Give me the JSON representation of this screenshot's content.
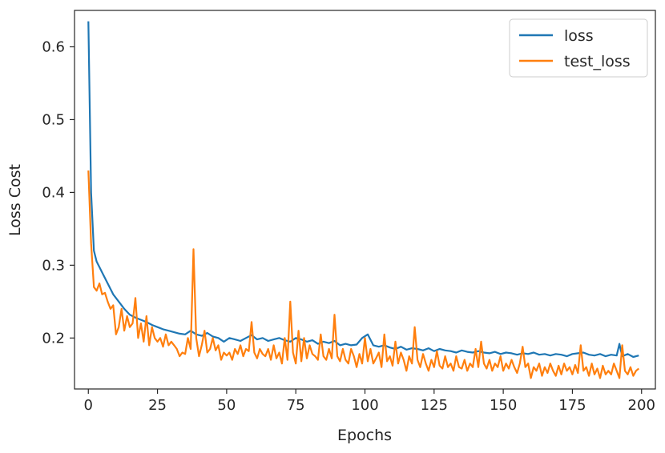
{
  "chart_data": {
    "type": "line",
    "title": "",
    "xlabel": "Epochs",
    "ylabel": "Loss Cost",
    "xlim": [
      -5,
      205
    ],
    "ylim": [
      0.13,
      0.65
    ],
    "xticks": [
      0,
      25,
      50,
      75,
      100,
      125,
      150,
      175,
      200
    ],
    "yticks": [
      0.2,
      0.3,
      0.4,
      0.5,
      0.6
    ],
    "ytick_labels": [
      "0.2",
      "0.3",
      "0.4",
      "0.5",
      "0.6"
    ],
    "grid": false,
    "legend": "top-right",
    "series": [
      {
        "name": "loss",
        "color": "#1f77b4",
        "points": [
          [
            0,
            0.635
          ],
          [
            1,
            0.4
          ],
          [
            2,
            0.32
          ],
          [
            3,
            0.305
          ],
          [
            5,
            0.29
          ],
          [
            7,
            0.275
          ],
          [
            9,
            0.26
          ],
          [
            11,
            0.25
          ],
          [
            13,
            0.24
          ],
          [
            15,
            0.232
          ],
          [
            17,
            0.228
          ],
          [
            19,
            0.225
          ],
          [
            21,
            0.222
          ],
          [
            23,
            0.218
          ],
          [
            25,
            0.215
          ],
          [
            27,
            0.212
          ],
          [
            29,
            0.21
          ],
          [
            31,
            0.208
          ],
          [
            33,
            0.206
          ],
          [
            35,
            0.205
          ],
          [
            37,
            0.21
          ],
          [
            39,
            0.205
          ],
          [
            41,
            0.203
          ],
          [
            43,
            0.207
          ],
          [
            45,
            0.202
          ],
          [
            47,
            0.2
          ],
          [
            49,
            0.195
          ],
          [
            51,
            0.2
          ],
          [
            53,
            0.198
          ],
          [
            55,
            0.196
          ],
          [
            57,
            0.2
          ],
          [
            59,
            0.204
          ],
          [
            61,
            0.198
          ],
          [
            63,
            0.2
          ],
          [
            65,
            0.196
          ],
          [
            67,
            0.198
          ],
          [
            69,
            0.2
          ],
          [
            71,
            0.197
          ],
          [
            73,
            0.195
          ],
          [
            75,
            0.2
          ],
          [
            77,
            0.198
          ],
          [
            79,
            0.195
          ],
          [
            81,
            0.197
          ],
          [
            83,
            0.192
          ],
          [
            85,
            0.195
          ],
          [
            87,
            0.193
          ],
          [
            89,
            0.196
          ],
          [
            91,
            0.19
          ],
          [
            93,
            0.192
          ],
          [
            95,
            0.19
          ],
          [
            97,
            0.191
          ],
          [
            99,
            0.2
          ],
          [
            101,
            0.205
          ],
          [
            103,
            0.19
          ],
          [
            105,
            0.188
          ],
          [
            107,
            0.19
          ],
          [
            109,
            0.187
          ],
          [
            111,
            0.185
          ],
          [
            113,
            0.188
          ],
          [
            115,
            0.184
          ],
          [
            117,
            0.186
          ],
          [
            119,
            0.185
          ],
          [
            121,
            0.183
          ],
          [
            123,
            0.186
          ],
          [
            125,
            0.182
          ],
          [
            127,
            0.185
          ],
          [
            129,
            0.183
          ],
          [
            131,
            0.182
          ],
          [
            133,
            0.18
          ],
          [
            135,
            0.183
          ],
          [
            137,
            0.181
          ],
          [
            139,
            0.18
          ],
          [
            141,
            0.182
          ],
          [
            143,
            0.18
          ],
          [
            145,
            0.179
          ],
          [
            147,
            0.181
          ],
          [
            149,
            0.178
          ],
          [
            151,
            0.18
          ],
          [
            153,
            0.179
          ],
          [
            155,
            0.177
          ],
          [
            157,
            0.179
          ],
          [
            159,
            0.178
          ],
          [
            161,
            0.18
          ],
          [
            163,
            0.177
          ],
          [
            165,
            0.178
          ],
          [
            167,
            0.176
          ],
          [
            169,
            0.178
          ],
          [
            171,
            0.177
          ],
          [
            173,
            0.175
          ],
          [
            175,
            0.178
          ],
          [
            177,
            0.179
          ],
          [
            179,
            0.18
          ],
          [
            181,
            0.177
          ],
          [
            183,
            0.176
          ],
          [
            185,
            0.178
          ],
          [
            187,
            0.175
          ],
          [
            189,
            0.177
          ],
          [
            191,
            0.176
          ],
          [
            192,
            0.192
          ],
          [
            193,
            0.175
          ],
          [
            195,
            0.178
          ],
          [
            197,
            0.174
          ],
          [
            199,
            0.176
          ]
        ]
      },
      {
        "name": "test_loss",
        "color": "#ff7f0e",
        "points": [
          [
            0,
            0.43
          ],
          [
            1,
            0.33
          ],
          [
            2,
            0.27
          ],
          [
            3,
            0.265
          ],
          [
            4,
            0.275
          ],
          [
            5,
            0.26
          ],
          [
            6,
            0.262
          ],
          [
            7,
            0.25
          ],
          [
            8,
            0.24
          ],
          [
            9,
            0.245
          ],
          [
            10,
            0.205
          ],
          [
            11,
            0.215
          ],
          [
            12,
            0.24
          ],
          [
            13,
            0.21
          ],
          [
            14,
            0.23
          ],
          [
            15,
            0.215
          ],
          [
            16,
            0.22
          ],
          [
            17,
            0.255
          ],
          [
            18,
            0.2
          ],
          [
            19,
            0.22
          ],
          [
            20,
            0.195
          ],
          [
            21,
            0.23
          ],
          [
            22,
            0.19
          ],
          [
            23,
            0.215
          ],
          [
            24,
            0.2
          ],
          [
            25,
            0.195
          ],
          [
            26,
            0.2
          ],
          [
            27,
            0.188
          ],
          [
            28,
            0.205
          ],
          [
            29,
            0.19
          ],
          [
            30,
            0.195
          ],
          [
            31,
            0.19
          ],
          [
            32,
            0.185
          ],
          [
            33,
            0.175
          ],
          [
            34,
            0.18
          ],
          [
            35,
            0.178
          ],
          [
            36,
            0.2
          ],
          [
            37,
            0.185
          ],
          [
            38,
            0.322
          ],
          [
            39,
            0.2
          ],
          [
            40,
            0.175
          ],
          [
            41,
            0.19
          ],
          [
            42,
            0.21
          ],
          [
            43,
            0.18
          ],
          [
            44,
            0.185
          ],
          [
            45,
            0.2
          ],
          [
            46,
            0.183
          ],
          [
            47,
            0.19
          ],
          [
            48,
            0.17
          ],
          [
            49,
            0.18
          ],
          [
            50,
            0.176
          ],
          [
            51,
            0.18
          ],
          [
            52,
            0.17
          ],
          [
            53,
            0.185
          ],
          [
            54,
            0.178
          ],
          [
            55,
            0.19
          ],
          [
            56,
            0.175
          ],
          [
            57,
            0.185
          ],
          [
            58,
            0.182
          ],
          [
            59,
            0.222
          ],
          [
            60,
            0.18
          ],
          [
            61,
            0.172
          ],
          [
            62,
            0.185
          ],
          [
            63,
            0.178
          ],
          [
            64,
            0.175
          ],
          [
            65,
            0.185
          ],
          [
            66,
            0.17
          ],
          [
            67,
            0.19
          ],
          [
            68,
            0.172
          ],
          [
            69,
            0.18
          ],
          [
            70,
            0.165
          ],
          [
            71,
            0.2
          ],
          [
            72,
            0.17
          ],
          [
            73,
            0.25
          ],
          [
            74,
            0.18
          ],
          [
            75,
            0.165
          ],
          [
            76,
            0.21
          ],
          [
            77,
            0.168
          ],
          [
            78,
            0.2
          ],
          [
            79,
            0.172
          ],
          [
            80,
            0.19
          ],
          [
            81,
            0.178
          ],
          [
            82,
            0.175
          ],
          [
            83,
            0.17
          ],
          [
            84,
            0.205
          ],
          [
            85,
            0.175
          ],
          [
            86,
            0.17
          ],
          [
            87,
            0.185
          ],
          [
            88,
            0.172
          ],
          [
            89,
            0.232
          ],
          [
            90,
            0.175
          ],
          [
            91,
            0.168
          ],
          [
            92,
            0.185
          ],
          [
            93,
            0.17
          ],
          [
            94,
            0.165
          ],
          [
            95,
            0.185
          ],
          [
            96,
            0.175
          ],
          [
            97,
            0.16
          ],
          [
            98,
            0.178
          ],
          [
            99,
            0.165
          ],
          [
            100,
            0.2
          ],
          [
            101,
            0.168
          ],
          [
            102,
            0.185
          ],
          [
            103,
            0.165
          ],
          [
            104,
            0.172
          ],
          [
            105,
            0.18
          ],
          [
            106,
            0.16
          ],
          [
            107,
            0.205
          ],
          [
            108,
            0.168
          ],
          [
            109,
            0.175
          ],
          [
            110,
            0.162
          ],
          [
            111,
            0.195
          ],
          [
            112,
            0.165
          ],
          [
            113,
            0.18
          ],
          [
            114,
            0.17
          ],
          [
            115,
            0.155
          ],
          [
            116,
            0.175
          ],
          [
            117,
            0.165
          ],
          [
            118,
            0.215
          ],
          [
            119,
            0.17
          ],
          [
            120,
            0.16
          ],
          [
            121,
            0.178
          ],
          [
            122,
            0.165
          ],
          [
            123,
            0.155
          ],
          [
            124,
            0.17
          ],
          [
            125,
            0.16
          ],
          [
            126,
            0.182
          ],
          [
            127,
            0.162
          ],
          [
            128,
            0.158
          ],
          [
            129,
            0.175
          ],
          [
            130,
            0.16
          ],
          [
            131,
            0.165
          ],
          [
            132,
            0.155
          ],
          [
            133,
            0.175
          ],
          [
            134,
            0.16
          ],
          [
            135,
            0.158
          ],
          [
            136,
            0.17
          ],
          [
            137,
            0.155
          ],
          [
            138,
            0.165
          ],
          [
            139,
            0.16
          ],
          [
            140,
            0.185
          ],
          [
            141,
            0.16
          ],
          [
            142,
            0.195
          ],
          [
            143,
            0.165
          ],
          [
            144,
            0.158
          ],
          [
            145,
            0.17
          ],
          [
            146,
            0.155
          ],
          [
            147,
            0.165
          ],
          [
            148,
            0.16
          ],
          [
            149,
            0.175
          ],
          [
            150,
            0.155
          ],
          [
            151,
            0.165
          ],
          [
            152,
            0.158
          ],
          [
            153,
            0.17
          ],
          [
            154,
            0.16
          ],
          [
            155,
            0.152
          ],
          [
            156,
            0.165
          ],
          [
            157,
            0.188
          ],
          [
            158,
            0.16
          ],
          [
            159,
            0.165
          ],
          [
            160,
            0.145
          ],
          [
            161,
            0.16
          ],
          [
            162,
            0.155
          ],
          [
            163,
            0.165
          ],
          [
            164,
            0.148
          ],
          [
            165,
            0.16
          ],
          [
            166,
            0.152
          ],
          [
            167,
            0.165
          ],
          [
            168,
            0.155
          ],
          [
            169,
            0.148
          ],
          [
            170,
            0.162
          ],
          [
            171,
            0.15
          ],
          [
            172,
            0.165
          ],
          [
            173,
            0.155
          ],
          [
            174,
            0.16
          ],
          [
            175,
            0.15
          ],
          [
            176,
            0.163
          ],
          [
            177,
            0.152
          ],
          [
            178,
            0.19
          ],
          [
            179,
            0.155
          ],
          [
            180,
            0.16
          ],
          [
            181,
            0.148
          ],
          [
            182,
            0.165
          ],
          [
            183,
            0.15
          ],
          [
            184,
            0.158
          ],
          [
            185,
            0.145
          ],
          [
            186,
            0.162
          ],
          [
            187,
            0.15
          ],
          [
            188,
            0.155
          ],
          [
            189,
            0.15
          ],
          [
            190,
            0.165
          ],
          [
            191,
            0.155
          ],
          [
            192,
            0.145
          ],
          [
            193,
            0.19
          ],
          [
            194,
            0.155
          ],
          [
            195,
            0.15
          ],
          [
            196,
            0.16
          ],
          [
            197,
            0.148
          ],
          [
            198,
            0.155
          ],
          [
            199,
            0.158
          ]
        ]
      }
    ]
  }
}
